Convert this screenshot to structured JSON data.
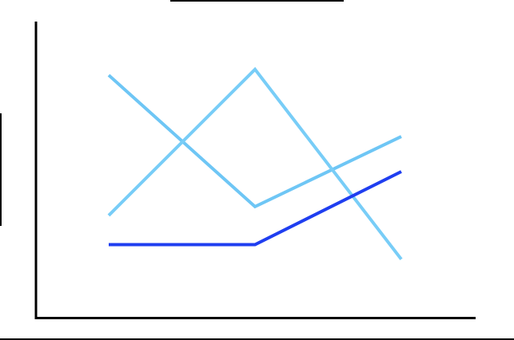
{
  "chart_data": {
    "type": "line",
    "title": "",
    "xlabel": "",
    "ylabel": "",
    "categories": [
      "",
      "",
      ""
    ],
    "ylim": [
      0,
      100
    ],
    "grid": false,
    "series": [
      {
        "color": "#6ec6f5",
        "values": [
          83,
          38,
          62
        ]
      },
      {
        "color": "#78cdf7",
        "values": [
          35,
          85,
          20
        ]
      },
      {
        "color": "#1f3ef0",
        "values": [
          25,
          25,
          50
        ]
      }
    ]
  }
}
